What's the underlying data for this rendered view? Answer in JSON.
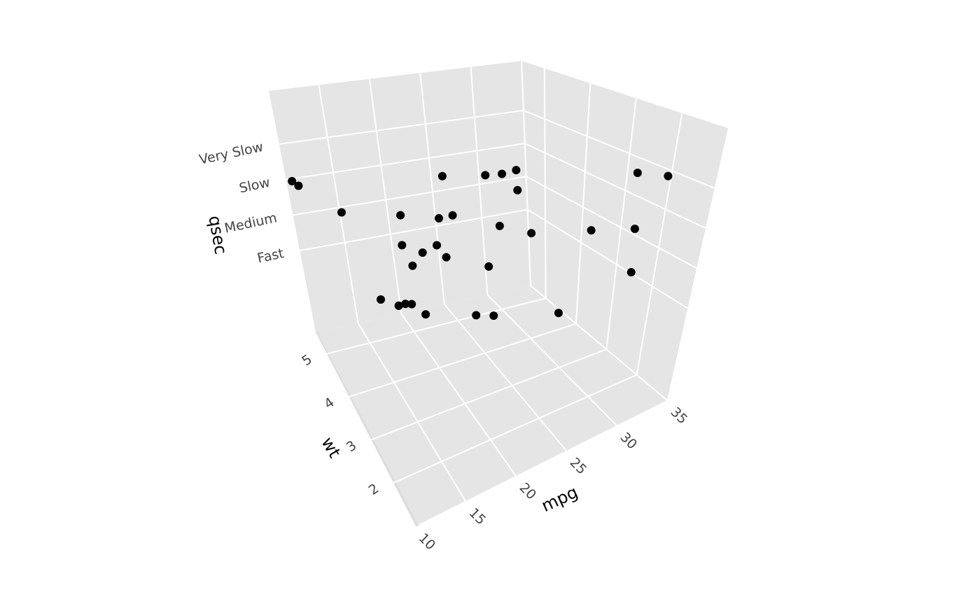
{
  "chart_data": {
    "type": "scatter3d",
    "x_label": "mpg",
    "y_label": "wt",
    "z_label": "qsec",
    "x": [
      21.0,
      21.0,
      22.8,
      21.4,
      18.7,
      18.1,
      14.3,
      24.4,
      22.8,
      19.2,
      17.8,
      16.4,
      17.3,
      15.2,
      10.4,
      10.4,
      14.7,
      32.4,
      30.4,
      33.9,
      21.5,
      15.5,
      15.2,
      13.3,
      19.2,
      27.3,
      26.0,
      30.4,
      15.8,
      19.7,
      15.0,
      21.4
    ],
    "y": [
      2.62,
      2.875,
      2.32,
      3.215,
      3.44,
      3.46,
      3.57,
      3.19,
      3.15,
      3.44,
      3.44,
      4.07,
      3.73,
      3.78,
      5.25,
      5.424,
      5.345,
      2.2,
      1.615,
      1.835,
      2.465,
      3.52,
      3.435,
      3.84,
      3.845,
      1.935,
      2.14,
      1.513,
      3.17,
      2.77,
      3.57,
      2.78
    ],
    "z": [
      "Fast",
      "Medium",
      "Slow",
      "Very Slow",
      "Medium",
      "Very Slow",
      "Fast",
      "Very Slow",
      "Very Slow",
      "Slow",
      "Slow",
      "Medium",
      "Medium",
      "Slow",
      "Slow",
      "Slow",
      "Medium",
      "Very Slow",
      "Slow",
      "Very Slow",
      "Very Slow",
      "Fast",
      "Medium",
      "Fast",
      "Medium",
      "Slow",
      "Fast",
      "Medium",
      "Fast",
      "Fast",
      "Fast",
      "Slow"
    ],
    "color": "#000000",
    "xlim": [
      10,
      35
    ],
    "xticks": [
      10,
      15,
      20,
      25,
      30,
      35
    ],
    "ylim": [
      1,
      5.5
    ],
    "yticks": [
      2,
      3,
      4,
      5
    ],
    "zcategories": [
      "Fast",
      "Medium",
      "Slow",
      "Very Slow"
    ],
    "zlim": [
      -2.3,
      4.5
    ],
    "grid": true
  }
}
